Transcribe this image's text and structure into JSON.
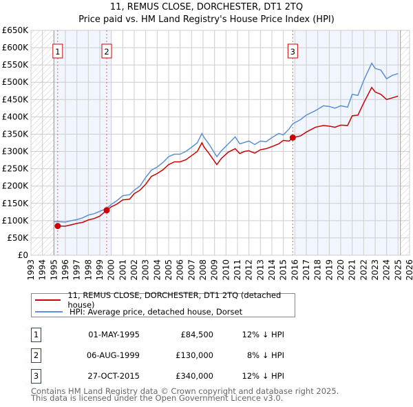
{
  "chart_data": {
    "type": "line",
    "title": "11, REMUS CLOSE, DORCHESTER, DT1 2TQ",
    "subtitle": "Price paid vs. HM Land Registry's House Price Index (HPI)",
    "xlim": [
      1993,
      2026
    ],
    "ylim": [
      0,
      650000
    ],
    "x_ticks": [
      "1993",
      "1994",
      "1995",
      "1996",
      "1997",
      "1998",
      "1999",
      "2000",
      "2001",
      "2002",
      "2003",
      "2004",
      "2005",
      "2006",
      "2007",
      "2008",
      "2009",
      "2010",
      "2011",
      "2012",
      "2013",
      "2014",
      "2015",
      "2016",
      "2017",
      "2018",
      "2019",
      "2020",
      "2021",
      "2022",
      "2023",
      "2024",
      "2025",
      "2026"
    ],
    "y_ticks": [
      {
        "v": 0,
        "label": "£0"
      },
      {
        "v": 50000,
        "label": "£50K"
      },
      {
        "v": 100000,
        "label": "£100K"
      },
      {
        "v": 150000,
        "label": "£150K"
      },
      {
        "v": 200000,
        "label": "£200K"
      },
      {
        "v": 250000,
        "label": "£250K"
      },
      {
        "v": 300000,
        "label": "£300K"
      },
      {
        "v": 350000,
        "label": "£350K"
      },
      {
        "v": 400000,
        "label": "£400K"
      },
      {
        "v": 450000,
        "label": "£450K"
      },
      {
        "v": 500000,
        "label": "£500K"
      },
      {
        "v": 550000,
        "label": "£550K"
      },
      {
        "v": 600000,
        "label": "£600K"
      },
      {
        "v": 650000,
        "label": "£650K"
      }
    ],
    "grid": true,
    "shaded_ranges": [
      [
        1995.0,
        2000.0
      ],
      [
        2016.0,
        2025.0
      ]
    ],
    "hatched_ranges": [
      [
        1993,
        1995
      ],
      [
        2025.2,
        2026
      ]
    ],
    "series": [
      {
        "name": "11, REMUS CLOSE, DORCHESTER, DT1 2TQ (detached house)",
        "color": "#cc0000",
        "x": [
          1995.33,
          1996,
          1996.5,
          1997,
          1997.5,
          1998,
          1998.5,
          1999,
          1999.6,
          2000,
          2000.5,
          2001,
          2001.6,
          2002,
          2002.5,
          2003,
          2003.5,
          2004,
          2004.5,
          2005,
          2005.5,
          2006,
          2006.5,
          2007,
          2007.5,
          2007.9,
          2008.1,
          2008.5,
          2009.2,
          2009.6,
          2010.2,
          2010.8,
          2011.2,
          2011.6,
          2012,
          2012.5,
          2013,
          2013.5,
          2014,
          2014.6,
          2015,
          2015.5,
          2015.82,
          2016.5,
          2017,
          2017.8,
          2018.5,
          2019,
          2019.5,
          2020,
          2020.6,
          2021,
          2021.5,
          2022,
          2022.7,
          2023,
          2023.5,
          2024,
          2024.5,
          2025
        ],
        "y": [
          84500,
          84000,
          88000,
          92000,
          95000,
          102000,
          106000,
          113000,
          130000,
          140000,
          148000,
          160000,
          162000,
          178000,
          188000,
          205000,
          228000,
          236000,
          247000,
          262000,
          270000,
          270000,
          276000,
          288000,
          300000,
          325000,
          312000,
          295000,
          262000,
          280000,
          298000,
          308000,
          294000,
          300000,
          302000,
          295000,
          305000,
          308000,
          314000,
          322000,
          332000,
          330000,
          340000,
          345000,
          356000,
          370000,
          375000,
          373000,
          370000,
          376000,
          375000,
          403000,
          405000,
          440000,
          485000,
          472000,
          465000,
          450000,
          455000,
          460000
        ]
      },
      {
        "name": "HPI: Average price, detached house, Dorset",
        "color": "#5b8fd6",
        "x": [
          1995.0,
          1995.5,
          1996,
          1996.5,
          1997,
          1997.5,
          1998,
          1998.5,
          1999,
          1999.6,
          2000,
          2000.5,
          2001,
          2001.6,
          2002,
          2002.5,
          2003,
          2003.5,
          2004,
          2004.5,
          2005,
          2005.5,
          2006,
          2006.5,
          2007,
          2007.5,
          2007.9,
          2008.1,
          2008.5,
          2009.2,
          2009.6,
          2010.2,
          2010.8,
          2011.2,
          2011.6,
          2012,
          2012.5,
          2013,
          2013.5,
          2014,
          2014.6,
          2015,
          2015.5,
          2015.82,
          2016.5,
          2017,
          2017.8,
          2018.5,
          2019,
          2019.5,
          2020,
          2020.6,
          2021,
          2021.5,
          2022,
          2022.7,
          2023,
          2023.5,
          2024,
          2024.5,
          2025
        ],
        "y": [
          97000,
          97000,
          96000,
          100000,
          103000,
          108000,
          116000,
          120000,
          127000,
          135000,
          147000,
          158000,
          172000,
          175000,
          188000,
          200000,
          225000,
          246000,
          255000,
          268000,
          285000,
          292000,
          292000,
          300000,
          312000,
          325000,
          352000,
          340000,
          322000,
          285000,
          302000,
          322000,
          342000,
          322000,
          326000,
          330000,
          320000,
          330000,
          328000,
          340000,
          352000,
          348000,
          365000,
          380000,
          392000,
          405000,
          418000,
          432000,
          430000,
          425000,
          432000,
          428000,
          465000,
          462000,
          505000,
          555000,
          540000,
          535000,
          510000,
          520000,
          525000
        ]
      }
    ],
    "sales": [
      {
        "label": "1",
        "x": 1995.33,
        "y": 84500
      },
      {
        "label": "2",
        "x": 1999.6,
        "y": 130000
      },
      {
        "label": "3",
        "x": 2015.82,
        "y": 340000
      }
    ]
  },
  "legend": {
    "items": [
      "11, REMUS CLOSE, DORCHESTER, DT1 2TQ (detached house)",
      "HPI: Average price, detached house, Dorset"
    ]
  },
  "transactions": [
    {
      "num": "1",
      "date": "01-MAY-1995",
      "price": "£84,500",
      "hpi": "12% ↓ HPI"
    },
    {
      "num": "2",
      "date": "06-AUG-1999",
      "price": "£130,000",
      "hpi": "8% ↓ HPI"
    },
    {
      "num": "3",
      "date": "27-OCT-2015",
      "price": "£340,000",
      "hpi": "12% ↓ HPI"
    }
  ],
  "footer": {
    "line1": "Contains HM Land Registry data © Crown copyright and database right 2025.",
    "line2": "This data is licensed under the Open Government Licence v3.0."
  }
}
